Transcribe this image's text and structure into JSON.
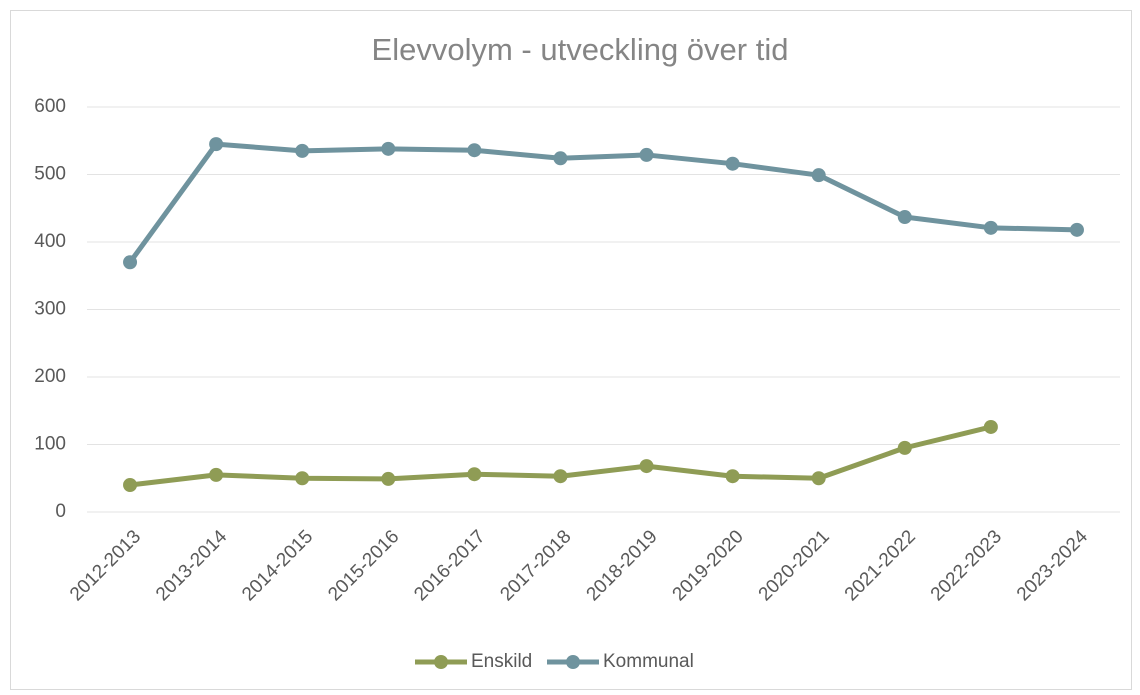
{
  "chart_data": {
    "type": "line",
    "title": "Elevvolym - utveckling över tid",
    "categories": [
      "2012-2013",
      "2013-2014",
      "2014-2015",
      "2015-2016",
      "2016-2017",
      "2017-2018",
      "2018-2019",
      "2019-2020",
      "2020-2021",
      "2021-2022",
      "2022-2023",
      "2023-2024"
    ],
    "series": [
      {
        "name": "Enskild",
        "color": "#8f9c55",
        "values": [
          40,
          55,
          50,
          49,
          56,
          53,
          68,
          53,
          50,
          95,
          126,
          null
        ]
      },
      {
        "name": "Kommunal",
        "color": "#6f939e",
        "values": [
          370,
          545,
          535,
          538,
          536,
          524,
          529,
          516,
          499,
          437,
          421,
          418
        ]
      }
    ],
    "ylim": [
      0,
      600
    ],
    "yticks": [
      0,
      100,
      200,
      300,
      400,
      500,
      600
    ],
    "grid": true,
    "legend": "bottom"
  }
}
